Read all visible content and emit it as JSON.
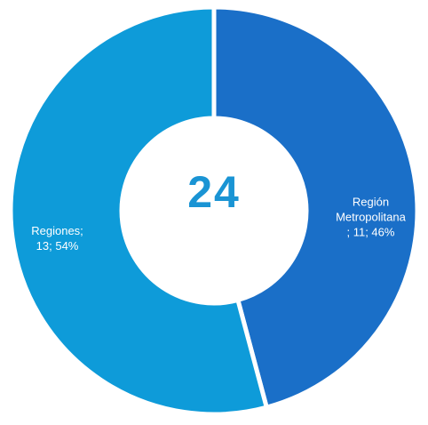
{
  "chart_data": {
    "type": "donut",
    "categories": [
      "Región Metropolitana",
      "Regiones"
    ],
    "values": [
      11,
      13
    ],
    "value_labels": [
      "Región\nMetropolitana\n; 11; 46%",
      "Regiones;\n13; 54%"
    ],
    "colors": [
      "#1a6fc8",
      "#0e9bd9"
    ],
    "total": 24
  }
}
